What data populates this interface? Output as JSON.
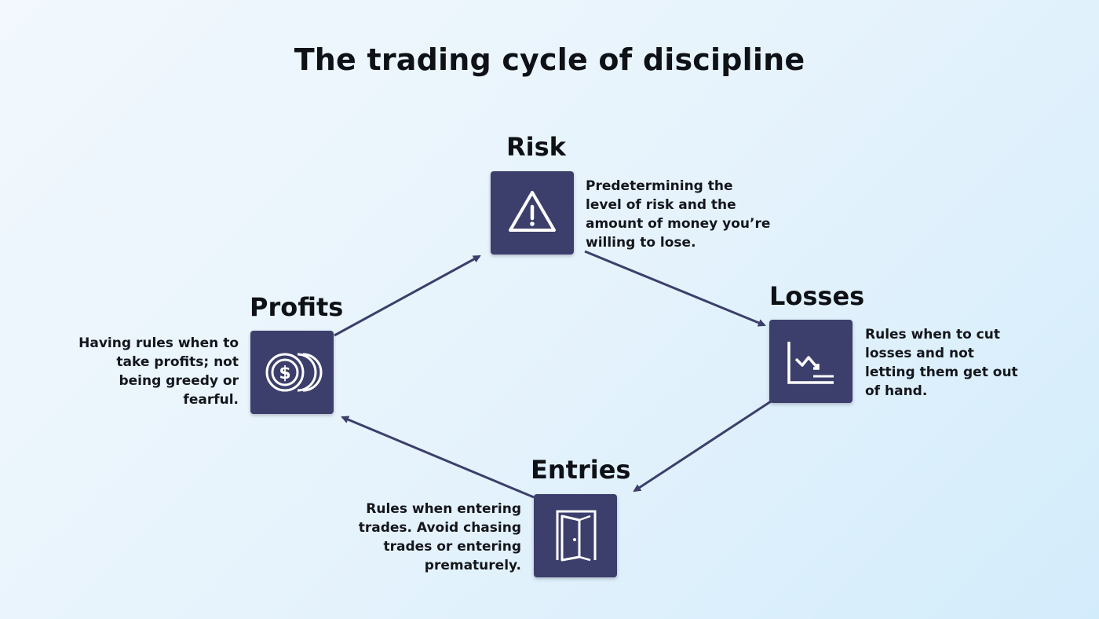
{
  "title": "The trading cycle of discipline",
  "colors": {
    "box": "#3c3f6b",
    "arrow": "#3c3f6b",
    "text": "#0e1116"
  },
  "nodes": {
    "risk": {
      "title": "Risk",
      "icon": "warning-icon",
      "description": "Predetermining the level of risk and the amount of money you’re willing to lose."
    },
    "losses": {
      "title": "Losses",
      "icon": "chart-down-icon",
      "description": "Rules when to cut losses and not letting them get out of hand."
    },
    "entries": {
      "title": "Entries",
      "icon": "door-icon",
      "description": "Rules when entering trades. Avoid chasing trades or entering prematurely."
    },
    "profits": {
      "title": "Profits",
      "icon": "coins-icon",
      "description": "Having rules when to take profits; not being greedy or fearful."
    }
  }
}
